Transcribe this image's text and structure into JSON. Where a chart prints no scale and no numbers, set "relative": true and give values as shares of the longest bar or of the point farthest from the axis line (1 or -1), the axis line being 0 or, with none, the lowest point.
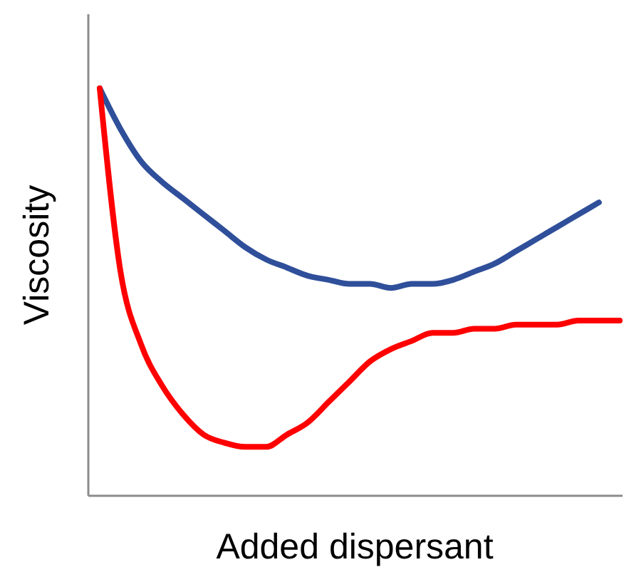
{
  "chart_data": {
    "type": "line",
    "relative": true,
    "xlabel": "Added dispersant",
    "ylabel": "Viscosity",
    "categories": [
      null,
      null,
      null,
      null,
      null,
      null,
      null,
      null,
      null,
      null,
      null,
      null,
      null,
      null,
      null,
      null,
      null,
      null,
      null,
      null,
      null,
      null,
      null,
      null,
      null,
      null
    ],
    "series": [
      {
        "color": "#2f4f9a",
        "values": [
          1.0,
          0.9,
          0.82,
          0.77,
          0.73,
          0.69,
          0.65,
          0.61,
          0.58,
          0.56,
          0.54,
          0.53,
          0.52,
          0.52,
          0.51,
          0.52,
          0.52,
          0.53,
          0.55,
          0.57,
          0.6,
          0.63,
          0.66,
          0.69,
          0.72,
          null
        ]
      },
      {
        "color": "#ff0000",
        "values": [
          1.0,
          0.55,
          0.37,
          0.27,
          0.2,
          0.15,
          0.13,
          0.12,
          0.12,
          0.15,
          0.18,
          0.23,
          0.28,
          0.33,
          0.36,
          0.38,
          0.4,
          0.4,
          0.41,
          0.41,
          0.42,
          0.42,
          0.42,
          0.43,
          0.43,
          0.43
        ]
      }
    ]
  }
}
